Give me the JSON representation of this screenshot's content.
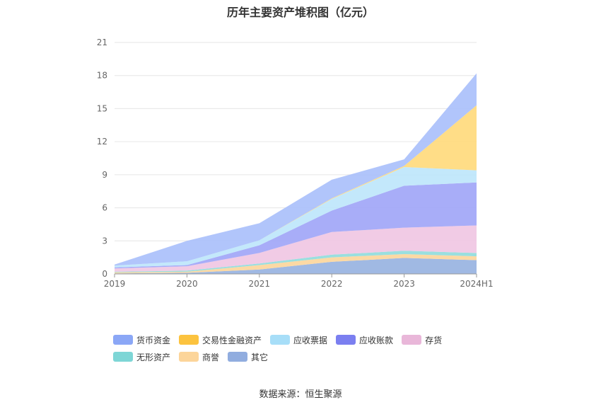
{
  "chart_data": {
    "type": "area",
    "stacked": true,
    "title": "历年主要资产堆积图（亿元）",
    "categories": [
      "2019",
      "2020",
      "2021",
      "2022",
      "2023",
      "2024H1"
    ],
    "yticks": [
      "0",
      "3",
      "6",
      "9",
      "12",
      "15",
      "18",
      "21"
    ],
    "ylim": [
      0,
      21
    ],
    "grid": true,
    "legend_position": "bottom",
    "series": [
      {
        "name": "其它",
        "color": "#96b1e0",
        "values": [
          0.05,
          0.1,
          0.4,
          1.1,
          1.45,
          1.25
        ]
      },
      {
        "name": "商誉",
        "color": "#fcd59a",
        "values": [
          0.1,
          0.1,
          0.4,
          0.4,
          0.35,
          0.35
        ]
      },
      {
        "name": "无形资产",
        "color": "#8fdcdc",
        "values": [
          0.05,
          0.1,
          0.15,
          0.25,
          0.3,
          0.3
        ]
      },
      {
        "name": "存货",
        "color": "#efc5e2",
        "values": [
          0.3,
          0.4,
          0.95,
          2.05,
          2.1,
          2.5
        ]
      },
      {
        "name": "应收账款",
        "color": "#9fa4f7",
        "values": [
          0.1,
          0.1,
          0.7,
          1.95,
          3.8,
          3.9
        ]
      },
      {
        "name": "应收票据",
        "color": "#bce6fb",
        "values": [
          0.15,
          0.35,
          0.45,
          1.05,
          1.7,
          1.1
        ]
      },
      {
        "name": "交易性金融资产",
        "color": "#ffd97a",
        "values": [
          0,
          0,
          0,
          0.05,
          0.1,
          5.9
        ]
      },
      {
        "name": "货币资金",
        "color": "#a8bffb",
        "values": [
          0.1,
          1.85,
          1.55,
          1.7,
          0.6,
          2.9
        ]
      }
    ],
    "legend_order": [
      "货币资金",
      "交易性金融资产",
      "应收票据",
      "应收账款",
      "存货",
      "无形资产",
      "商誉",
      "其它"
    ],
    "legend_colors": {
      "货币资金": "#8ba7f6",
      "交易性金融资产": "#fcc33f",
      "应收票据": "#a7def8",
      "应收账款": "#7b7ff0",
      "存货": "#e9b7d9",
      "无形资产": "#7ed6d6",
      "商誉": "#fcd59a",
      "其它": "#91addf"
    }
  },
  "source": "数据来源：恒生聚源"
}
